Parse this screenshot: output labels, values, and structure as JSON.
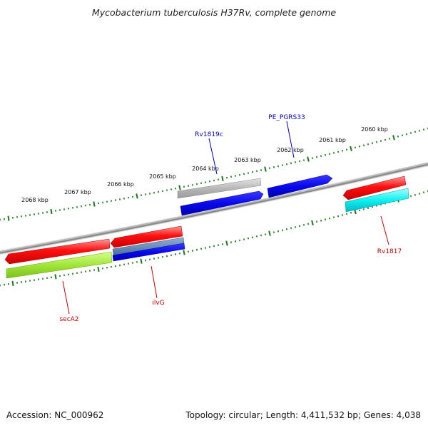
{
  "title": "Mycobacterium tuberculosis H37Rv, complete genome",
  "footer": {
    "accession": "Accession: NC_000962",
    "summary": "Topology: circular; Length: 4,411,532 bp; Genes: 4,038"
  },
  "ruler": {
    "major_labels": [
      "2068 kbp",
      "2067 kbp",
      "2066 kbp",
      "2065 kbp",
      "2064 kbp",
      "2063 kbp",
      "2062 kbp",
      "2061 kbp",
      "2060 kbp"
    ]
  },
  "genes": [
    {
      "name": "secA2",
      "color": "#cc0000"
    },
    {
      "name": "ilvG",
      "color": "#cc0000"
    },
    {
      "name": "Rv1819c",
      "color": "#0000cc"
    },
    {
      "name": "PE_PGRS33",
      "color": "#0000cc"
    },
    {
      "name": "Rv1817",
      "color": "#cc0000"
    }
  ],
  "colors": {
    "backbone": "#808080",
    "ticks": "#1a7a1a",
    "red_feature": "#ff0000",
    "green_feature": "#99e633",
    "blue_feature": "#0000ee",
    "steel_feature": "#5a7ea8",
    "grey_feature": "#b0b0b0",
    "cyan_feature": "#00eeee",
    "forward_label": "#cc0000",
    "reverse_label": "#0000cc"
  }
}
